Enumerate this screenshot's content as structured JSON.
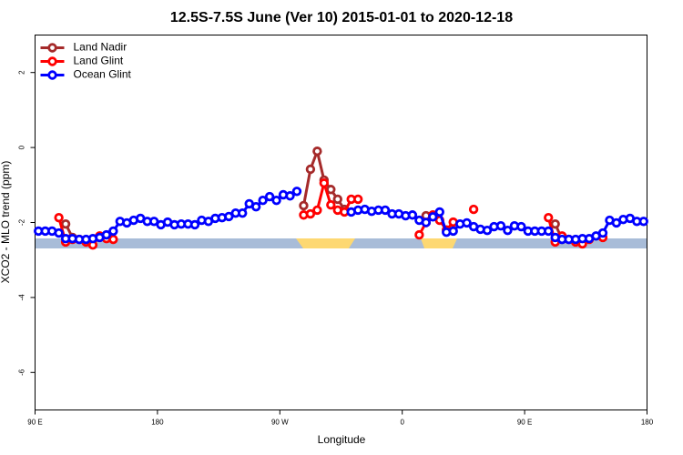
{
  "chart_data": {
    "type": "line",
    "title": "12.5S-7.5S June (Ver 10)   2015-01-01 to 2020-12-18",
    "x_label": "Longitude",
    "y_label": "XCO2 - MLO trend (ppm)",
    "xlim": [
      90,
      540
    ],
    "xticks": [
      {
        "value": 90,
        "label": "90 E"
      },
      180,
      {
        "value": 270,
        "label": "90 W"
      },
      {
        "value": 360,
        "label": "0"
      },
      {
        "value": 450,
        "label": "90 E"
      },
      {
        "value": 540,
        "label": "180"
      }
    ],
    "ylim": [
      -7,
      3
    ],
    "yticks": [
      -6,
      -4,
      -2,
      0,
      2
    ],
    "legend": "top-left",
    "series": [
      {
        "name": "Land Nadir",
        "color": "#a52a2a",
        "x": [
          112.5,
          117.5,
          122.5,
          287.5,
          292.5,
          297.5,
          302.5,
          307.5,
          312.5,
          317.5,
          322.5,
          377.5,
          382.5,
          472.5,
          477.5
        ],
        "values": [
          -2.04,
          -2.4,
          null,
          -1.55,
          -0.58,
          -0.1,
          -0.87,
          -1.12,
          -1.38,
          -1.65,
          null,
          -1.82,
          null,
          -2.04,
          -2.45
        ]
      },
      {
        "name": "Land Glint",
        "color": "#ff0000",
        "x": [
          107.5,
          112.5,
          117.5,
          122.5,
          127.5,
          132.5,
          137.5,
          142.5,
          147.5,
          152.5,
          287.5,
          292.5,
          297.5,
          302.5,
          307.5,
          312.5,
          317.5,
          322.5,
          327.5,
          332.5,
          372.5,
          377.5,
          382.5,
          387.5,
          392.5,
          397.5,
          402.5,
          412.5,
          417.5,
          467.5,
          472.5,
          477.5,
          482.5,
          487.5,
          492.5,
          497.5,
          502.5,
          507.5
        ],
        "values": [
          -1.87,
          -2.52,
          -2.45,
          -2.45,
          -2.52,
          -2.6,
          -2.36,
          -2.43,
          -2.45,
          null,
          -1.8,
          -1.77,
          -1.67,
          -0.95,
          -1.53,
          -1.67,
          -1.72,
          -1.38,
          -1.38,
          null,
          -2.33,
          -2.0,
          -1.8,
          -1.94,
          -2.2,
          -1.99,
          null,
          -1.65,
          null,
          -1.87,
          -2.52,
          -2.36,
          -2.45,
          -2.52,
          -2.57,
          -2.45,
          null,
          -2.4
        ]
      },
      {
        "name": "Ocean Glint",
        "color": "#0000ff",
        "x": [
          92.5,
          97.5,
          102.5,
          107.5,
          112.5,
          117.5,
          122.5,
          127.5,
          132.5,
          137.5,
          142.5,
          147.5,
          152.5,
          157.5,
          162.5,
          167.5,
          172.5,
          177.5,
          182.5,
          187.5,
          192.5,
          197.5,
          202.5,
          207.5,
          212.5,
          217.5,
          222.5,
          227.5,
          232.5,
          237.5,
          242.5,
          247.5,
          252.5,
          257.5,
          262.5,
          267.5,
          272.5,
          277.5,
          282.5,
          302.5,
          322.5,
          327.5,
          332.5,
          337.5,
          342.5,
          347.5,
          352.5,
          357.5,
          362.5,
          367.5,
          372.5,
          377.5,
          382.5,
          387.5,
          392.5,
          397.5,
          402.5,
          407.5,
          412.5,
          417.5,
          422.5,
          427.5,
          432.5,
          437.5,
          442.5,
          447.5,
          452.5,
          457.5,
          462.5,
          467.5,
          472.5,
          477.5,
          482.5,
          487.5,
          492.5,
          497.5,
          502.5,
          507.5,
          512.5,
          517.5,
          522.5,
          527.5,
          532.5,
          537.5
        ],
        "values": [
          -2.23,
          -2.23,
          -2.23,
          -2.28,
          -2.43,
          -2.43,
          -2.45,
          -2.45,
          -2.43,
          -2.4,
          -2.33,
          -2.23,
          -1.97,
          -2.01,
          -1.94,
          -1.89,
          -1.97,
          -1.97,
          -2.06,
          -1.99,
          -2.06,
          -2.04,
          -2.04,
          -2.06,
          -1.94,
          -1.97,
          -1.89,
          -1.87,
          -1.84,
          -1.75,
          -1.75,
          -1.5,
          -1.58,
          -1.41,
          -1.31,
          -1.41,
          -1.26,
          -1.29,
          -1.17,
          null,
          -1.72,
          -1.67,
          -1.65,
          -1.7,
          -1.67,
          -1.67,
          -1.77,
          -1.77,
          -1.82,
          -1.8,
          -1.94,
          -2.0,
          -1.85,
          -1.72,
          -2.26,
          -2.23,
          -2.04,
          -2.01,
          -2.11,
          -2.18,
          -2.21,
          -2.11,
          -2.09,
          -2.21,
          -2.09,
          -2.11,
          -2.23,
          -2.23,
          -2.23,
          -2.23,
          -2.4,
          -2.45,
          -2.45,
          -2.45,
          -2.43,
          -2.43,
          -2.36,
          -2.28,
          -1.94,
          -2.01,
          -1.92,
          -1.89,
          -1.97,
          -1.97
        ]
      }
    ]
  }
}
